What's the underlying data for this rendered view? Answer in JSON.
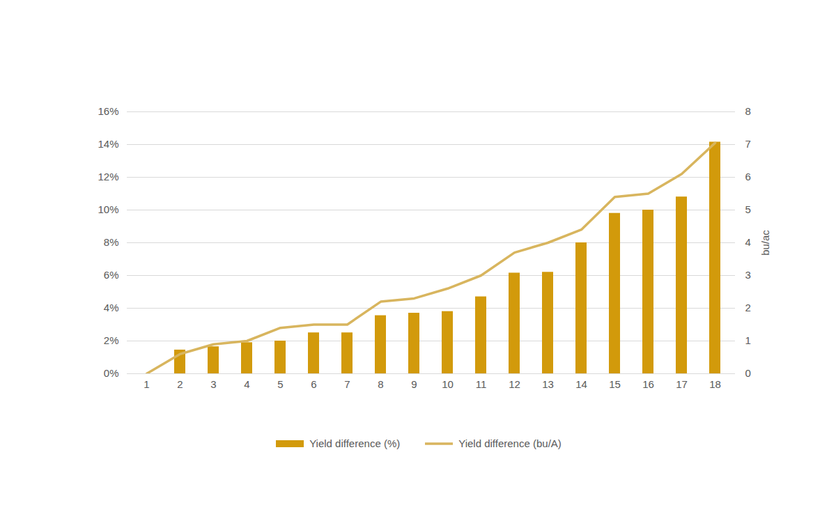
{
  "chart_data": {
    "type": "bar",
    "categories": [
      1,
      2,
      3,
      4,
      5,
      6,
      7,
      8,
      9,
      10,
      11,
      12,
      13,
      14,
      15,
      16,
      17,
      18
    ],
    "series": [
      {
        "name": "Yield difference (%)",
        "type": "bar",
        "color": "#D29A0B",
        "values": [
          0,
          1.45,
          1.65,
          1.9,
          2.0,
          2.5,
          2.5,
          3.55,
          3.7,
          3.8,
          4.7,
          6.15,
          6.2,
          8.0,
          9.8,
          10.0,
          10.8,
          14.15
        ]
      },
      {
        "name": "Yield difference (bu/A)",
        "type": "line",
        "axis": "y2",
        "color": "#D8B55E",
        "values": [
          0,
          0.6,
          0.9,
          1.0,
          1.4,
          1.5,
          1.5,
          2.2,
          2.3,
          2.6,
          3.0,
          3.7,
          4.0,
          4.4,
          5.4,
          5.5,
          6.1,
          7.05
        ]
      }
    ],
    "ylim": [
      0,
      16
    ],
    "yticks": [
      {
        "value": 0,
        "label": "0%"
      },
      {
        "value": 2,
        "label": "2%"
      },
      {
        "value": 4,
        "label": "4%"
      },
      {
        "value": 6,
        "label": "6%"
      },
      {
        "value": 8,
        "label": "8%"
      },
      {
        "value": 10,
        "label": "10%"
      },
      {
        "value": 12,
        "label": "12%"
      },
      {
        "value": 14,
        "label": "14%"
      },
      {
        "value": 16,
        "label": "16%"
      }
    ],
    "y2lim": [
      0,
      8
    ],
    "y2ticks": [
      0,
      1,
      2,
      3,
      4,
      5,
      6,
      7,
      8
    ],
    "y2label": "bu/ac",
    "grid": true,
    "legend": "bottom"
  }
}
